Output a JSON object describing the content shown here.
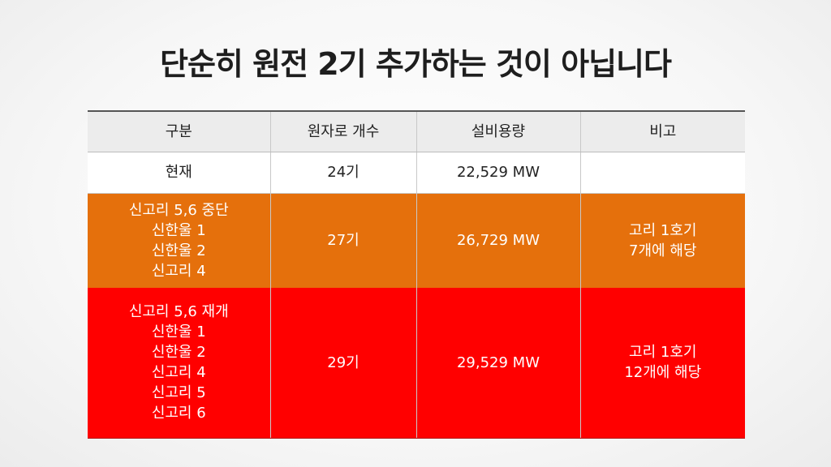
{
  "title": "단순히 원전 2기 추가하는 것이 아닙니다",
  "table": {
    "headers": [
      "구분",
      "원자로 개수",
      "설비용량",
      "비고"
    ],
    "rows": [
      {
        "category": [
          "현재"
        ],
        "reactors": "24기",
        "capacity": "22,529 MW",
        "note": []
      },
      {
        "category": [
          "신고리 5,6 중단",
          "신한울 1",
          "신한울 2",
          "신고리 4"
        ],
        "reactors": "27기",
        "capacity": "26,729 MW",
        "note": [
          "고리 1호기",
          "7개에 해당"
        ]
      },
      {
        "category": [
          "신고리 5,6 재개",
          "신한울 1",
          "신한울 2",
          "신고리 4",
          "신고리 5",
          "신고리 6"
        ],
        "reactors": "29기",
        "capacity": "29,529 MW",
        "note": [
          "고리 1호기",
          "12개에 해당"
        ]
      }
    ]
  },
  "colors": {
    "row_halt_bg": "#e5700c",
    "row_resume_bg": "#ff0000",
    "header_bg": "#ececec"
  }
}
